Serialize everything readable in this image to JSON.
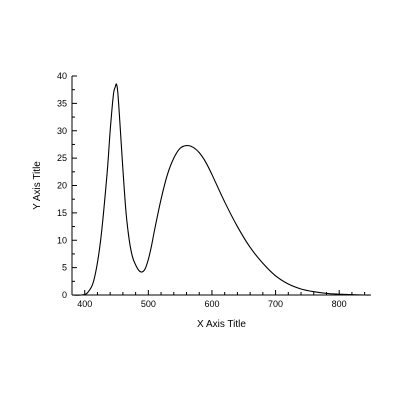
{
  "chart_data": {
    "type": "line",
    "title": "",
    "xlabel": "X Axis Title",
    "ylabel": "Y Axis Title",
    "xlim": [
      380,
      850
    ],
    "ylim": [
      0,
      40
    ],
    "x_ticks": [
      400,
      500,
      600,
      700,
      800
    ],
    "y_ticks": [
      0,
      5,
      10,
      15,
      20,
      25,
      30,
      35,
      40
    ],
    "grid": false,
    "legend": "none",
    "line_color": "#000000",
    "series": [
      {
        "x": [
          380,
          395,
          405,
          415,
          425,
          435,
          440,
          445,
          448,
          450,
          452,
          455,
          460,
          465,
          470,
          475,
          480,
          485,
          490,
          495,
          500,
          505,
          510,
          520,
          530,
          540,
          550,
          560,
          570,
          580,
          590,
          600,
          620,
          640,
          660,
          680,
          700,
          720,
          740,
          760,
          780,
          800,
          820,
          840,
          850
        ],
        "y": [
          0.0,
          0.0,
          0.5,
          3.0,
          10.0,
          22.0,
          30.0,
          36.5,
          38.0,
          38.5,
          37.0,
          32.0,
          23.0,
          15.0,
          10.0,
          7.0,
          5.5,
          4.5,
          4.2,
          4.8,
          6.5,
          9.0,
          12.0,
          17.5,
          22.0,
          25.0,
          26.8,
          27.3,
          27.0,
          26.0,
          24.3,
          22.0,
          17.0,
          12.5,
          8.7,
          5.8,
          3.5,
          2.0,
          1.1,
          0.6,
          0.3,
          0.15,
          0.05,
          0.0,
          0.0
        ]
      }
    ]
  }
}
